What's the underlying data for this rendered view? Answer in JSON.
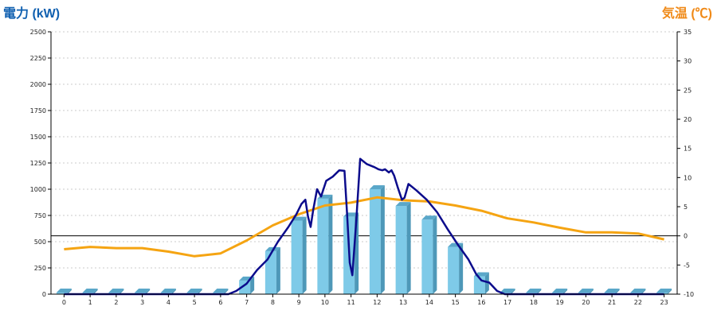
{
  "chart_data": {
    "type": "bar+line",
    "title_left": "電力 (kW)",
    "title_right": "気温 (℃)",
    "x": [
      0,
      1,
      2,
      3,
      4,
      5,
      6,
      7,
      8,
      9,
      10,
      11,
      12,
      13,
      14,
      15,
      16,
      17,
      18,
      19,
      20,
      21,
      22,
      23
    ],
    "y_left": {
      "min": 0,
      "max": 2500,
      "ticks": [
        0,
        250,
        500,
        750,
        1000,
        1250,
        1500,
        1750,
        2000,
        2250,
        2500
      ]
    },
    "y_right": {
      "min": -10,
      "max": 35,
      "ticks": [
        -10,
        -5,
        0,
        5,
        10,
        15,
        20,
        25,
        30,
        35
      ]
    },
    "reference_line_right": 0,
    "grid": "horizontal dotted",
    "bars": {
      "name": "",
      "color": "#7ecae8",
      "values": [
        15,
        15,
        15,
        15,
        15,
        15,
        15,
        130,
        410,
        700,
        910,
        740,
        1000,
        840,
        710,
        450,
        170,
        15,
        15,
        15,
        15,
        15,
        15,
        15
      ]
    },
    "power_line": {
      "name": "",
      "color": "#0c0c8c",
      "points": [
        [
          0,
          0
        ],
        [
          6.3,
          0
        ],
        [
          6.6,
          30
        ],
        [
          7,
          100
        ],
        [
          7.4,
          230
        ],
        [
          7.8,
          330
        ],
        [
          8.2,
          500
        ],
        [
          8.6,
          640
        ],
        [
          8.9,
          760
        ],
        [
          9.1,
          860
        ],
        [
          9.25,
          900
        ],
        [
          9.35,
          740
        ],
        [
          9.45,
          640
        ],
        [
          9.55,
          800
        ],
        [
          9.7,
          1000
        ],
        [
          9.85,
          930
        ],
        [
          10.05,
          1080
        ],
        [
          10.3,
          1120
        ],
        [
          10.55,
          1180
        ],
        [
          10.75,
          1175
        ],
        [
          10.85,
          760
        ],
        [
          10.95,
          300
        ],
        [
          11.05,
          180
        ],
        [
          11.2,
          700
        ],
        [
          11.35,
          1290
        ],
        [
          11.6,
          1240
        ],
        [
          11.9,
          1210
        ],
        [
          12.05,
          1190
        ],
        [
          12.2,
          1180
        ],
        [
          12.3,
          1190
        ],
        [
          12.45,
          1160
        ],
        [
          12.55,
          1180
        ],
        [
          12.65,
          1130
        ],
        [
          12.8,
          1010
        ],
        [
          12.95,
          900
        ],
        [
          13.05,
          920
        ],
        [
          13.2,
          1050
        ],
        [
          13.5,
          990
        ],
        [
          13.9,
          900
        ],
        [
          14.3,
          780
        ],
        [
          14.7,
          620
        ],
        [
          15.1,
          470
        ],
        [
          15.5,
          330
        ],
        [
          15.8,
          190
        ],
        [
          16,
          130
        ],
        [
          16.3,
          110
        ],
        [
          16.6,
          30
        ],
        [
          16.9,
          0
        ],
        [
          23,
          0
        ]
      ]
    },
    "temperature_line": {
      "name": "",
      "color": "#f5a412",
      "values": [
        -2.3,
        -1.9,
        -2.1,
        -2.1,
        -2.7,
        -3.5,
        -3.0,
        -0.8,
        1.8,
        3.7,
        5.2,
        5.7,
        6.6,
        6.1,
        5.9,
        5.2,
        4.3,
        3.0,
        2.3,
        1.4,
        0.6,
        0.6,
        0.4,
        -0.6
      ]
    }
  }
}
